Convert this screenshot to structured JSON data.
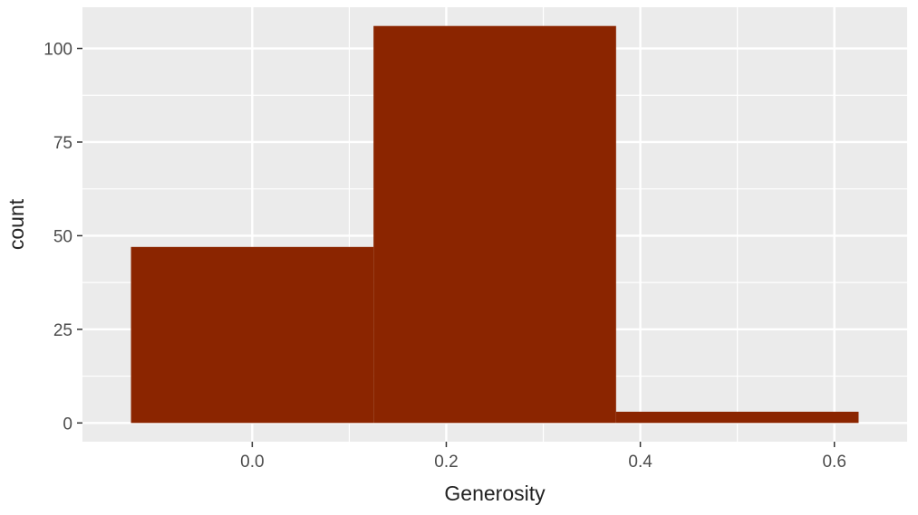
{
  "chart_data": {
    "type": "bar",
    "xlabel": "Generosity",
    "ylabel": "count",
    "xlim": [
      -0.175,
      0.675
    ],
    "ylim": [
      -5,
      111
    ],
    "x_ticks": [
      0.0,
      0.2,
      0.4,
      0.6
    ],
    "x_tick_labels": [
      "0.0",
      "0.2",
      "0.4",
      "0.6"
    ],
    "y_ticks": [
      0,
      25,
      50,
      75,
      100
    ],
    "y_tick_labels": [
      "0",
      "25",
      "50",
      "75",
      "100"
    ],
    "bins": [
      {
        "x_start": -0.125,
        "x_end": 0.125,
        "count": 47
      },
      {
        "x_start": 0.125,
        "x_end": 0.375,
        "count": 106
      },
      {
        "x_start": 0.375,
        "x_end": 0.625,
        "count": 3
      }
    ],
    "bar_color": "#8b2500",
    "panel_background": "#ebebeb",
    "grid_color": "#ffffff",
    "grid": true,
    "legend": "none"
  }
}
